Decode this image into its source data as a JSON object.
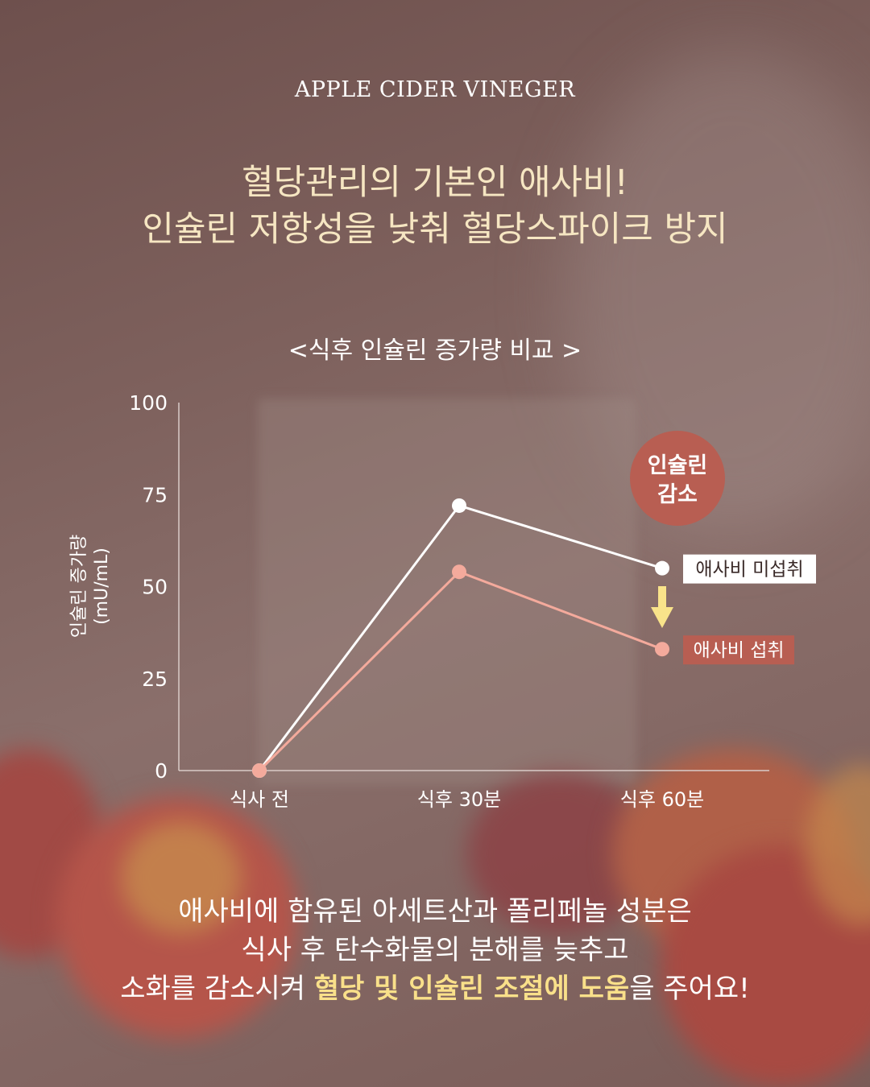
{
  "brand": "APPLE CIDER VINEGER",
  "headline": {
    "line1": "혈당관리의 기본인 애사비!",
    "line2": "인슐린 저항성을 낮춰 혈당스파이크 방지"
  },
  "chart_data": {
    "type": "line",
    "title": "<식후 인슐린 증가량 비교 >",
    "ylabel": [
      "인슐린 증가량",
      "(mU/mL)"
    ],
    "xlabel": "",
    "categories": [
      "식사 전",
      "식후 30분",
      "식후 60분"
    ],
    "ylim": [
      0,
      100
    ],
    "yticks": [
      "100",
      "75",
      "50",
      "25",
      "0"
    ],
    "series": [
      {
        "name": "애사비 미섭취",
        "values": [
          0,
          72,
          55
        ],
        "color": "#ffffff"
      },
      {
        "name": "애사비 섭취",
        "values": [
          0,
          54,
          33
        ],
        "color": "#f4aa9c"
      }
    ],
    "badge": {
      "line1": "인슐린",
      "line2": "감소",
      "color": "#b85e52"
    },
    "arrow_color": "#f9e38a",
    "grid": false,
    "legend": "right"
  },
  "bottom": {
    "line1": "애사비에 함유된 아세트산과 폴리페놀 성분은",
    "line2": "식사 후 탄수화물의 분해를 늦추고",
    "line3_pre": "소화를 감소시켜 ",
    "line3_highlight": "혈당 및 인슐린 조절에 도움",
    "line3_post": "을 주어요!"
  }
}
